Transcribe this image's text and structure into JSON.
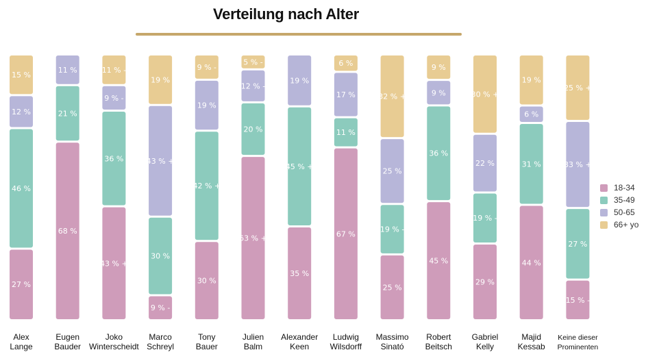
{
  "chart_data": {
    "type": "bar",
    "stacked": true,
    "title": "Verteilung nach Alter",
    "legend_position": "right",
    "series": [
      {
        "key": "s1834",
        "name": "18-34",
        "color": "#cf9cba"
      },
      {
        "key": "s3549",
        "name": "35-49",
        "color": "#8ccbbd"
      },
      {
        "key": "s5065",
        "name": "50-65",
        "color": "#b7b6d9"
      },
      {
        "key": "s66",
        "name": "66+ yo",
        "color": "#e8cc93"
      }
    ],
    "categories": [
      {
        "lines": [
          "Alex",
          "Lange"
        ]
      },
      {
        "lines": [
          "Eugen",
          "Bauder"
        ]
      },
      {
        "lines": [
          "Joko",
          "Winterscheidt"
        ]
      },
      {
        "lines": [
          "Marco",
          "Schreyl"
        ]
      },
      {
        "lines": [
          "Tony",
          "Bauer"
        ]
      },
      {
        "lines": [
          "Julien",
          "Balm"
        ]
      },
      {
        "lines": [
          "Alexander",
          "Keen"
        ]
      },
      {
        "lines": [
          "Ludwig",
          "Wilsdorff"
        ]
      },
      {
        "lines": [
          "Massimo",
          "Sinató"
        ]
      },
      {
        "lines": [
          "Robert",
          "Beitsch"
        ]
      },
      {
        "lines": [
          "Gabriel",
          "Kelly"
        ]
      },
      {
        "lines": [
          "Majid",
          "Kessab"
        ]
      },
      {
        "lines": [
          "Keine dieser",
          "Prominenten"
        ],
        "small": true
      }
    ],
    "values": [
      {
        "s1834": 27,
        "s3549": 46,
        "s5065": 12,
        "s66": 15
      },
      {
        "s1834": 68,
        "s3549": 21,
        "s5065": 11,
        "s66": 0
      },
      {
        "s1834": 43,
        "s3549": 36,
        "s5065": 9,
        "s66": 11
      },
      {
        "s1834": 9,
        "s3549": 30,
        "s5065": 43,
        "s66": 19
      },
      {
        "s1834": 30,
        "s3549": 42,
        "s5065": 19,
        "s66": 9
      },
      {
        "s1834": 63,
        "s3549": 20,
        "s5065": 12,
        "s66": 5
      },
      {
        "s1834": 35,
        "s3549": 45,
        "s5065": 19,
        "s66": 0
      },
      {
        "s1834": 67,
        "s3549": 11,
        "s5065": 17,
        "s66": 6
      },
      {
        "s1834": 25,
        "s3549": 19,
        "s5065": 25,
        "s66": 32
      },
      {
        "s1834": 45,
        "s3549": 36,
        "s5065": 9,
        "s66": 9
      },
      {
        "s1834": 29,
        "s3549": 19,
        "s5065": 22,
        "s66": 30
      },
      {
        "s1834": 44,
        "s3549": 31,
        "s5065": 6,
        "s66": 19
      },
      {
        "s1834": 15,
        "s3549": 27,
        "s5065": 33,
        "s66": 25
      }
    ],
    "labels": [
      {
        "s1834": "27 %",
        "s3549": "46 %",
        "s5065": "12 %",
        "s66": "15 %"
      },
      {
        "s1834": "68 %",
        "s3549": "21 %",
        "s5065": "11 %"
      },
      {
        "s1834": "43 % +",
        "s3549": "36 %",
        "s5065": "9 % -",
        "s66": "11 % -"
      },
      {
        "s1834": "9 % -",
        "s3549": "30 %",
        "s5065": "43 % +",
        "s66": "19 %"
      },
      {
        "s1834": "30 %",
        "s3549": "42 % +",
        "s5065": "19 %",
        "s66": "9 % -"
      },
      {
        "s1834": "63 % +",
        "s3549": "20 %",
        "s5065": "12 % -",
        "s66": "5 % -"
      },
      {
        "s1834": "35 %",
        "s3549": "45 % +",
        "s5065": "19 %"
      },
      {
        "s1834": "67 %",
        "s3549": "11 %",
        "s5065": "17 %",
        "s66": "6 %"
      },
      {
        "s1834": "25 %",
        "s3549": "19 % -",
        "s5065": "25 %",
        "s66": "32 % +"
      },
      {
        "s1834": "45 %",
        "s3549": "36 %",
        "s5065": "9 %",
        "s66": "9 %"
      },
      {
        "s1834": "29 %",
        "s3549": "19 % -",
        "s5065": "22 %",
        "s66": "30 % +"
      },
      {
        "s1834": "44 %",
        "s3549": "31 %",
        "s5065": "6 %",
        "s66": "19 %"
      },
      {
        "s1834": "15 % -",
        "s3549": "27 %",
        "s5065": "33 % +",
        "s66": "25 % +"
      }
    ]
  }
}
